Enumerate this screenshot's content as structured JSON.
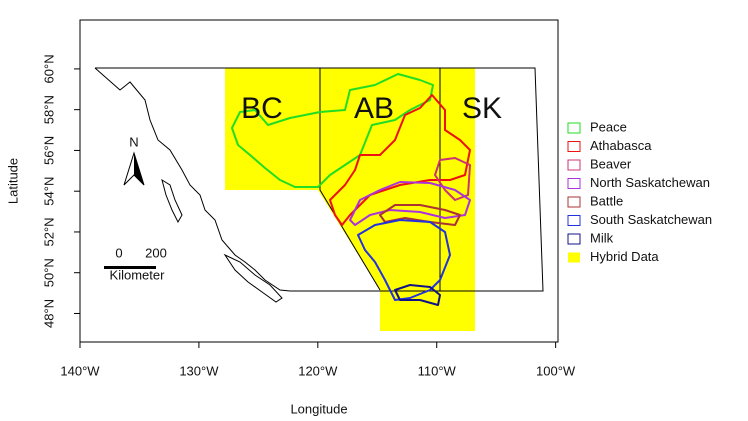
{
  "chart_data": {
    "type": "map",
    "x_label": "Longitude",
    "y_label": "Latitude",
    "xlim": [
      -140,
      -99.8
    ],
    "ylim": [
      46.6,
      62.4
    ],
    "xticks": [
      {
        "value": -140,
        "label": "140°W"
      },
      {
        "value": -130,
        "label": "130°W"
      },
      {
        "value": -120,
        "label": "120°W"
      },
      {
        "value": -110,
        "label": "110°W"
      },
      {
        "value": -100,
        "label": "100°W"
      }
    ],
    "yticks": [
      {
        "value": 48,
        "label": "48°N"
      },
      {
        "value": 50,
        "label": "50°N"
      },
      {
        "value": 52,
        "label": "52°N"
      },
      {
        "value": 54,
        "label": "54°N"
      },
      {
        "value": 56,
        "label": "56°N"
      },
      {
        "value": 58,
        "label": "58°N"
      },
      {
        "value": 60,
        "label": "60°N"
      }
    ],
    "map_labels": [
      "BC",
      "AB",
      "SK"
    ],
    "north_label": "N",
    "scale_bar": {
      "ticks": [
        "0",
        "200"
      ],
      "unit": "Kilometer"
    },
    "series": [
      {
        "name": "Peace",
        "color": "#22dd22"
      },
      {
        "name": "Athabasca",
        "color": "#ee1111"
      },
      {
        "name": "Beaver",
        "color": "#cc3377"
      },
      {
        "name": "North Saskatchewan",
        "color": "#aa33dd"
      },
      {
        "name": "Battle",
        "color": "#aa3333"
      },
      {
        "name": "South Saskatchewan",
        "color": "#2233dd"
      },
      {
        "name": "Milk",
        "color": "#111188"
      }
    ],
    "hybrid": {
      "name": "Hybrid Data",
      "color": "#ffff00"
    }
  }
}
